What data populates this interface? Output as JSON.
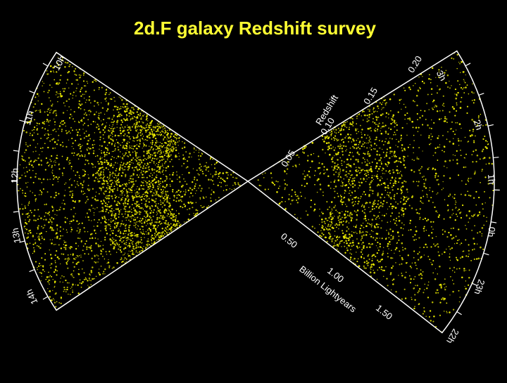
{
  "title": "2d.F galaxy Redshift survey",
  "survey_map": {
    "hours_left": [
      "10h",
      "11h",
      "12h",
      "13h",
      "14h"
    ],
    "hours_right": [
      "3h",
      "2h",
      "1h",
      "0h",
      "23h",
      "22h"
    ],
    "redshift_axis": {
      "label": "Redshift",
      "ticks": [
        "0.05",
        "0.10",
        "0.15",
        "0.20"
      ]
    },
    "distance_axis": {
      "label": "Billion Lightyears",
      "ticks": [
        "0.50",
        "1.00",
        "1.50"
      ]
    }
  }
}
